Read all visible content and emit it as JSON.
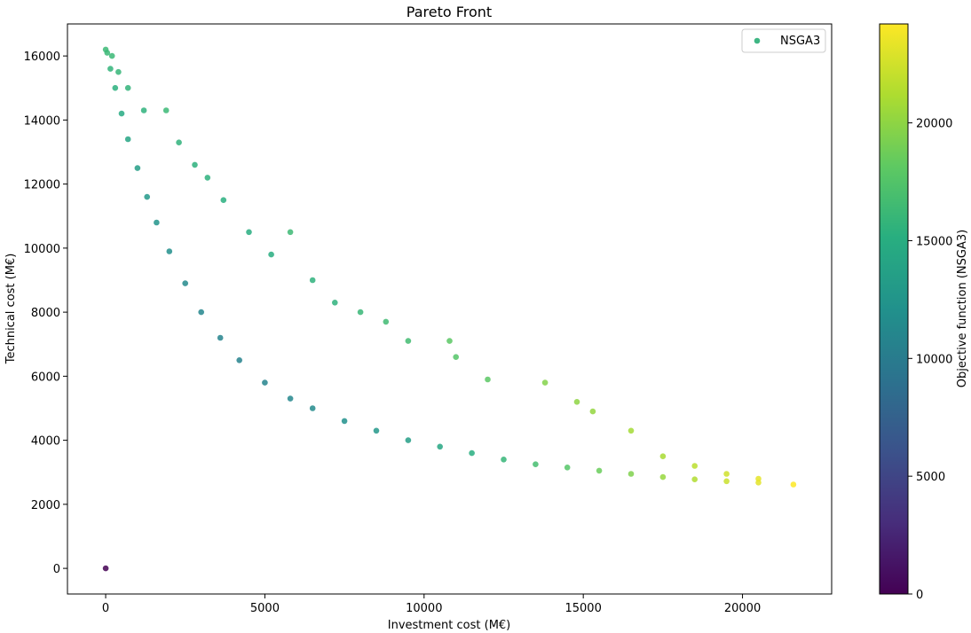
{
  "chart_data": {
    "type": "scatter",
    "title": "Pareto Front",
    "xlabel": "Investment cost (M€)",
    "ylabel": "Technical cost (M€)",
    "xlim": [
      -1200,
      22800
    ],
    "ylim": [
      -800,
      17000
    ],
    "xticks": [
      0,
      5000,
      10000,
      15000,
      20000
    ],
    "yticks": [
      0,
      2000,
      4000,
      6000,
      8000,
      10000,
      12000,
      14000,
      16000
    ],
    "legend": {
      "position": "top-right",
      "entries": [
        "NSGA3"
      ]
    },
    "grid": false,
    "colorbar": {
      "label": "Objective function (NSGA3)",
      "colormap": "viridis",
      "range": [
        0,
        24200
      ],
      "ticks": [
        0,
        5000,
        10000,
        15000,
        20000
      ]
    },
    "series": [
      {
        "name": "NSGA3",
        "points": [
          [
            0,
            0,
            0
          ],
          [
            0,
            16200,
            16200
          ],
          [
            50,
            16100,
            16150
          ],
          [
            150,
            15600,
            15750
          ],
          [
            300,
            15000,
            15300
          ],
          [
            500,
            14200,
            14700
          ],
          [
            700,
            13400,
            14100
          ],
          [
            1000,
            12500,
            13500
          ],
          [
            1300,
            11600,
            12900
          ],
          [
            1600,
            10800,
            12400
          ],
          [
            2000,
            9900,
            11900
          ],
          [
            2500,
            8900,
            11400
          ],
          [
            3000,
            8000,
            11000
          ],
          [
            3600,
            7200,
            10800
          ],
          [
            4200,
            6500,
            10700
          ],
          [
            5000,
            5800,
            10800
          ],
          [
            5800,
            5300,
            11100
          ],
          [
            6500,
            5000,
            11500
          ],
          [
            7500,
            4600,
            12100
          ],
          [
            8500,
            4300,
            12800
          ],
          [
            9500,
            4000,
            13500
          ],
          [
            10500,
            3800,
            14300
          ],
          [
            11500,
            3600,
            15100
          ],
          [
            12500,
            3400,
            15900
          ],
          [
            13500,
            3250,
            16750
          ],
          [
            14500,
            3150,
            17650
          ],
          [
            15500,
            3050,
            18550
          ],
          [
            16500,
            2950,
            19450
          ],
          [
            17500,
            2850,
            20350
          ],
          [
            18500,
            2780,
            21280
          ],
          [
            19500,
            2720,
            22220
          ],
          [
            20500,
            2680,
            23180
          ],
          [
            21600,
            2620,
            24220
          ],
          [
            200,
            16000,
            16200
          ],
          [
            400,
            15500,
            15900
          ],
          [
            700,
            15000,
            15700
          ],
          [
            1200,
            14300,
            15500
          ],
          [
            1900,
            14300,
            16200
          ],
          [
            2300,
            13300,
            15600
          ],
          [
            2800,
            12600,
            15400
          ],
          [
            3200,
            12200,
            15400
          ],
          [
            3700,
            11500,
            15200
          ],
          [
            4500,
            10500,
            15000
          ],
          [
            5800,
            10500,
            16300
          ],
          [
            5200,
            9800,
            15000
          ],
          [
            6500,
            9000,
            15500
          ],
          [
            7200,
            8300,
            15500
          ],
          [
            8000,
            8000,
            16000
          ],
          [
            8800,
            7700,
            16500
          ],
          [
            9500,
            7100,
            16600
          ],
          [
            10800,
            7100,
            17900
          ],
          [
            11000,
            6600,
            17600
          ],
          [
            12000,
            5900,
            17900
          ],
          [
            13800,
            5800,
            19600
          ],
          [
            14800,
            5200,
            20000
          ],
          [
            15300,
            4900,
            20200
          ],
          [
            16500,
            4300,
            20800
          ],
          [
            17500,
            3500,
            21000
          ],
          [
            18500,
            3200,
            21700
          ],
          [
            19500,
            2950,
            22450
          ],
          [
            20500,
            2800,
            23300
          ]
        ]
      }
    ]
  }
}
